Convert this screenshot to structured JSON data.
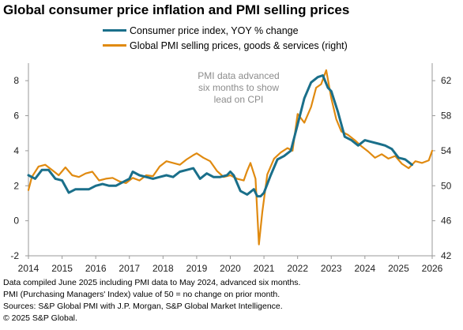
{
  "title": "Global consumer price inflation and PMI selling prices",
  "legend": [
    {
      "label": "Consumer price index, YOY % change",
      "color": "#1a6f8a"
    },
    {
      "label": "Global PMI selling prices, goods & services (right)",
      "color": "#e08a10"
    }
  ],
  "annotation": [
    "PMI data advanced",
    "six months to show",
    "lead on CPI"
  ],
  "footer": [
    "Data compiled June 2025 including PMI data to May 2024, advanced six months.",
    "PMI (Purchasing Managers' Index) value of 50 = no change on prior month.",
    "Sources: S&P Global PMI with J.P. Morgan, S&P Global Market Intelligence.",
    "© 2025 S&P Global."
  ],
  "chart_data": {
    "type": "line",
    "title": "Global consumer price inflation and PMI selling prices",
    "x_ticks": [
      "2014",
      "2015",
      "2016",
      "2017",
      "2018",
      "2019",
      "2020",
      "2021",
      "2022",
      "2023",
      "2024",
      "2025",
      "2026"
    ],
    "xlim": [
      2014,
      2026
    ],
    "left_axis": {
      "ylim": [
        -2,
        9
      ],
      "ticks": [
        "-2",
        "0",
        "2",
        "4",
        "6",
        "8"
      ]
    },
    "right_axis": {
      "ylim": [
        42,
        64
      ],
      "ticks": [
        "42",
        "46",
        "50",
        "54",
        "58",
        "62"
      ]
    },
    "grid": false,
    "legend_position": "top",
    "series": [
      {
        "name": "Consumer price index, YOY % change",
        "axis": "left",
        "color": "#1a6f8a",
        "x": [
          2014.0,
          2014.2,
          2014.4,
          2014.6,
          2014.8,
          2015.0,
          2015.2,
          2015.4,
          2015.6,
          2015.8,
          2016.0,
          2016.2,
          2016.4,
          2016.6,
          2016.8,
          2017.0,
          2017.1,
          2017.3,
          2017.5,
          2017.7,
          2017.9,
          2018.1,
          2018.3,
          2018.5,
          2018.7,
          2018.9,
          2019.1,
          2019.3,
          2019.5,
          2019.7,
          2019.9,
          2020.0,
          2020.1,
          2020.3,
          2020.5,
          2020.7,
          2020.8,
          2020.9,
          2021.0,
          2021.2,
          2021.4,
          2021.6,
          2021.8,
          2022.0,
          2022.2,
          2022.4,
          2022.6,
          2022.75,
          2022.9,
          2023.0,
          2023.2,
          2023.4,
          2023.6,
          2023.8,
          2024.0,
          2024.2,
          2024.4,
          2024.6,
          2024.8,
          2025.0,
          2025.2,
          2025.4
        ],
        "y": [
          2.6,
          2.4,
          2.9,
          2.9,
          2.4,
          2.3,
          1.6,
          1.8,
          1.8,
          1.8,
          2.0,
          2.1,
          2.0,
          2.0,
          2.2,
          2.4,
          2.8,
          2.6,
          2.5,
          2.4,
          2.5,
          2.6,
          2.5,
          2.8,
          2.9,
          3.0,
          2.4,
          2.7,
          2.5,
          2.5,
          2.6,
          2.8,
          2.6,
          1.7,
          1.5,
          1.8,
          1.4,
          1.4,
          1.6,
          2.6,
          3.5,
          3.7,
          4.0,
          5.5,
          7.0,
          7.9,
          8.2,
          8.3,
          7.6,
          7.4,
          6.2,
          4.8,
          4.6,
          4.3,
          4.6,
          4.5,
          4.4,
          4.3,
          4.1,
          3.6,
          3.5,
          3.2
        ]
      },
      {
        "name": "Global PMI selling prices, goods & services (right)",
        "axis": "right",
        "color": "#e08a10",
        "x": [
          2014.0,
          2014.1,
          2014.3,
          2014.5,
          2014.7,
          2014.9,
          2015.1,
          2015.3,
          2015.5,
          2015.7,
          2015.9,
          2016.1,
          2016.3,
          2016.5,
          2016.7,
          2016.9,
          2017.1,
          2017.3,
          2017.5,
          2017.7,
          2017.9,
          2018.1,
          2018.3,
          2018.5,
          2018.7,
          2018.9,
          2019.0,
          2019.2,
          2019.4,
          2019.6,
          2019.8,
          2020.0,
          2020.2,
          2020.4,
          2020.5,
          2020.6,
          2020.75,
          2020.85,
          2020.95,
          2021.1,
          2021.3,
          2021.5,
          2021.7,
          2021.85,
          2022.0,
          2022.2,
          2022.4,
          2022.55,
          2022.7,
          2022.85,
          2023.0,
          2023.15,
          2023.3,
          2023.5,
          2023.7,
          2023.9,
          2024.1,
          2024.3,
          2024.5,
          2024.7,
          2024.9,
          2025.1,
          2025.3,
          2025.5,
          2025.7,
          2025.9,
          2026.0
        ],
        "y": [
          49.5,
          51.0,
          52.2,
          52.4,
          51.8,
          51.2,
          52.1,
          51.2,
          51.0,
          51.4,
          51.6,
          50.6,
          50.8,
          50.9,
          50.5,
          50.3,
          50.9,
          50.6,
          51.2,
          51.1,
          52.2,
          52.8,
          52.6,
          52.4,
          53.0,
          53.5,
          53.7,
          53.2,
          52.8,
          51.7,
          51.0,
          51.2,
          50.8,
          50.6,
          51.7,
          52.6,
          50.8,
          43.3,
          47.0,
          51.3,
          53.1,
          53.8,
          54.3,
          54.0,
          58.2,
          57.2,
          59.0,
          61.2,
          61.6,
          63.2,
          60.0,
          57.6,
          56.2,
          55.8,
          55.2,
          54.5,
          53.9,
          53.2,
          53.6,
          53.1,
          53.4,
          52.5,
          52.0,
          52.8,
          52.6,
          52.9,
          54.0
        ]
      }
    ]
  }
}
